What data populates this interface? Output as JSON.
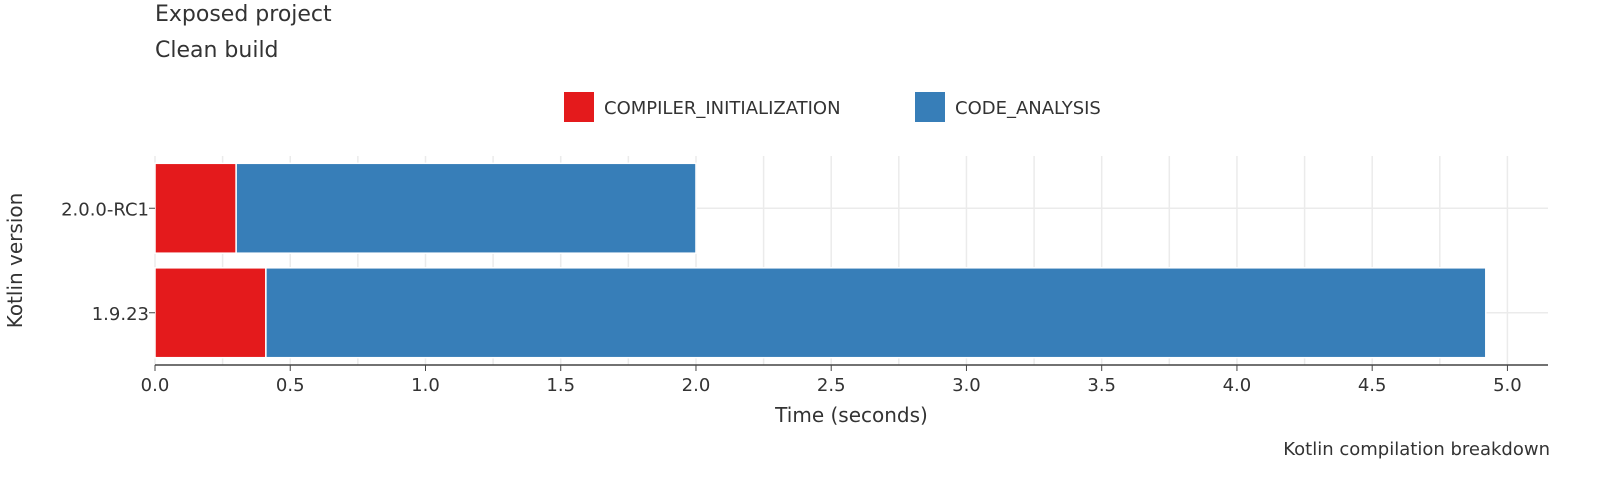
{
  "title": "Exposed project",
  "subtitle": "Clean build",
  "caption": "Kotlin compilation breakdown",
  "chart_data": {
    "type": "bar",
    "orientation": "horizontal",
    "stacked": true,
    "categories": [
      "2.0.0-RC1",
      "1.9.23"
    ],
    "series": [
      {
        "name": "COMPILER_INITIALIZATION",
        "color": "#e41a1c",
        "values": [
          0.3,
          0.41
        ]
      },
      {
        "name": "CODE_ANALYSIS",
        "color": "#377eb8",
        "values": [
          1.7,
          4.51
        ]
      }
    ],
    "xlabel": "Time (seconds)",
    "ylabel": "Kotlin version",
    "xlim": [
      0,
      5.15
    ],
    "xticks": [
      "0.0",
      "0.5",
      "1.0",
      "1.5",
      "2.0",
      "2.5",
      "3.0",
      "3.5",
      "4.0",
      "4.5",
      "5.0"
    ],
    "grid": true,
    "legend_position": "top"
  }
}
